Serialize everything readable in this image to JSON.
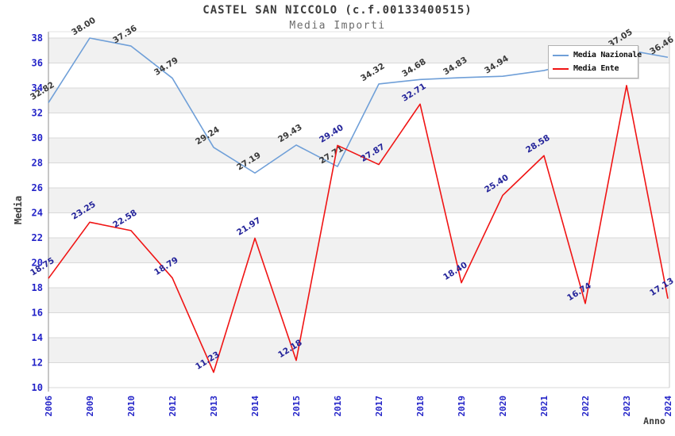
{
  "header": {
    "title": "CASTEL SAN NICCOLO (c.f.00133400515)",
    "subtitle": "Media Importi"
  },
  "chart_data": {
    "type": "line",
    "title": "CASTEL SAN NICCOLO (c.f.00133400515)",
    "subtitle": "Media Importi",
    "xlabel": "Anno",
    "ylabel": "Media",
    "ylim": [
      10,
      38
    ],
    "yticks": [
      10,
      12,
      14,
      16,
      18,
      20,
      22,
      24,
      26,
      28,
      30,
      32,
      34,
      36,
      38
    ],
    "grid": "horizontal",
    "alternating_bands": true,
    "legend_position": "top-right",
    "categories": [
      "2006",
      "2009",
      "2010",
      "2012",
      "2013",
      "2014",
      "2015",
      "2016",
      "2017",
      "2018",
      "2019",
      "2020",
      "2021",
      "2022",
      "2023",
      "2024"
    ],
    "series": [
      {
        "name": "Media Nazionale",
        "color": "#6f9fd8",
        "label_color": "#3a3a3a",
        "values": [
          32.82,
          38.0,
          37.36,
          34.79,
          29.24,
          27.19,
          29.43,
          27.71,
          34.32,
          34.68,
          34.83,
          34.94,
          35.4,
          36.2,
          37.05,
          36.46
        ],
        "labels": [
          "32.82",
          "38.00",
          "37.36",
          "34.79",
          "29.24",
          "27.19",
          "29.43",
          "27.71",
          "34.32",
          "34.68",
          "34.83",
          "34.94",
          null,
          null,
          "37.05",
          "36.46"
        ]
      },
      {
        "name": "Media Ente",
        "color": "#f01414",
        "label_color": "#24249a",
        "values": [
          18.75,
          23.25,
          22.58,
          18.79,
          11.23,
          21.97,
          12.18,
          29.4,
          27.87,
          32.71,
          18.4,
          25.4,
          28.58,
          16.74,
          34.2,
          17.13
        ],
        "labels": [
          "18.75",
          "23.25",
          "22.58",
          "18.79",
          "11.23",
          "21.97",
          "12.18",
          "29.40",
          "27.87",
          "32.71",
          "18.40",
          "25.40",
          "28.58",
          "16.74",
          null,
          "17.13"
        ]
      }
    ],
    "hidden_labels_note": "null labels are covered by the legend box in the original; those point values are estimated from line position",
    "colors": {
      "tick_label": "#2323c8",
      "gridline": "#d9d9d9",
      "band": "#f1f1f1",
      "axis_line": "#8c8c8c",
      "plot_border": "#c8c8c8",
      "axis_title": "#3c3c3c"
    }
  }
}
